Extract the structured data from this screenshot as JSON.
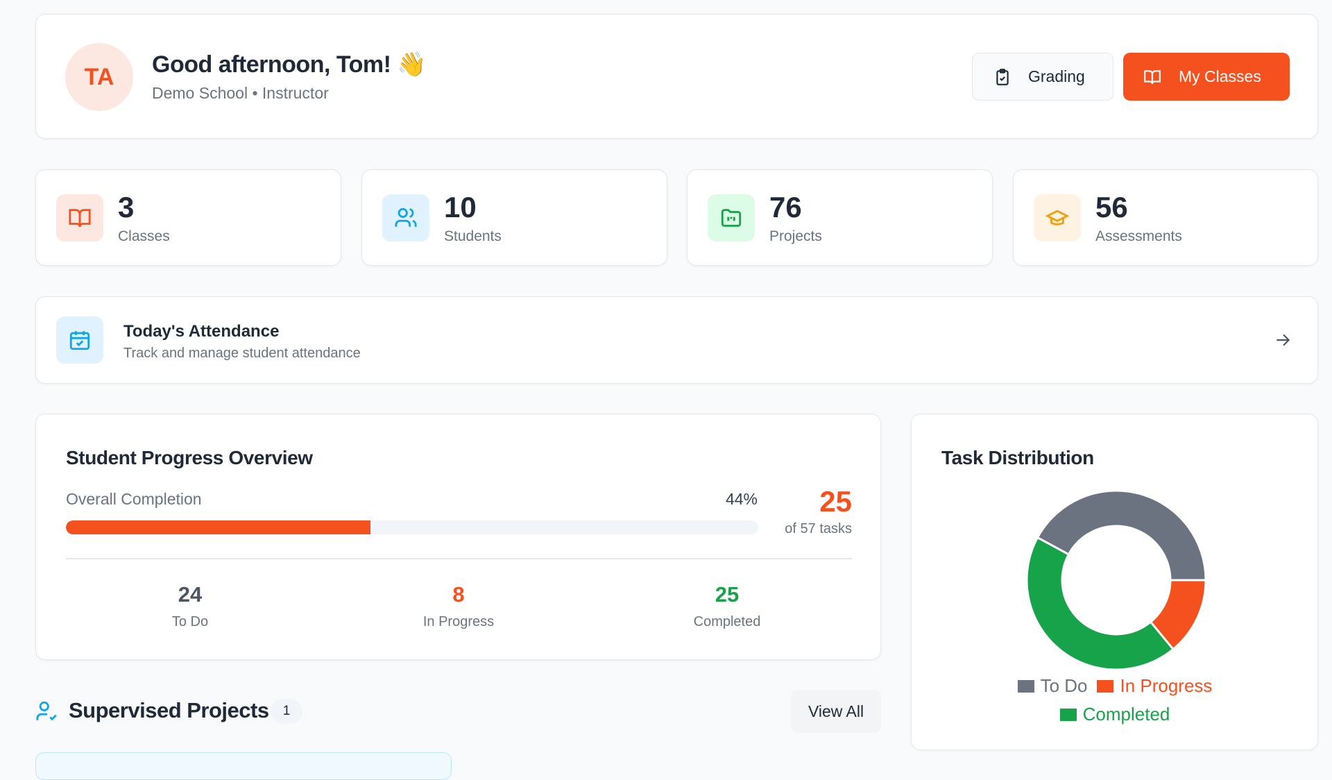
{
  "header": {
    "avatar": "TA",
    "greeting": "Good afternoon, Tom! 👋",
    "subtitle": "Demo School • Instructor",
    "buttons": [
      "Grading",
      "My Classes"
    ]
  },
  "stats": [
    {
      "value": 3,
      "label": "Classes"
    },
    {
      "value": 10,
      "label": "Students"
    },
    {
      "value": 76,
      "label": "Projects"
    },
    {
      "value": 56,
      "label": "Assessments"
    }
  ],
  "attendance": {
    "title": "Today's Attendance",
    "subtitle": "Track and manage student attendance"
  },
  "progress": {
    "title": "Student Progress Overview",
    "label": "Overall Completion",
    "completion": {
      "value": 44,
      "label": "44%"
    },
    "xlim": [
      0,
      100
    ],
    "completed": 25,
    "total_label": "of 57 tasks",
    "counts": [
      {
        "value": 24,
        "label": "To Do"
      },
      {
        "value": 8,
        "label": "In Progress"
      },
      {
        "value": 25,
        "label": "Completed"
      }
    ]
  },
  "supervised": {
    "title": "Supervised Projects",
    "count": 1,
    "action": "View All"
  },
  "chart_data": {
    "type": "donut",
    "title": "Task Distribution",
    "categories": [
      "To Do",
      "In Progress",
      "Completed"
    ],
    "values": [
      24,
      8,
      25
    ],
    "colors": [
      "#6b7280",
      "#f4511e",
      "#16a34a"
    ]
  }
}
